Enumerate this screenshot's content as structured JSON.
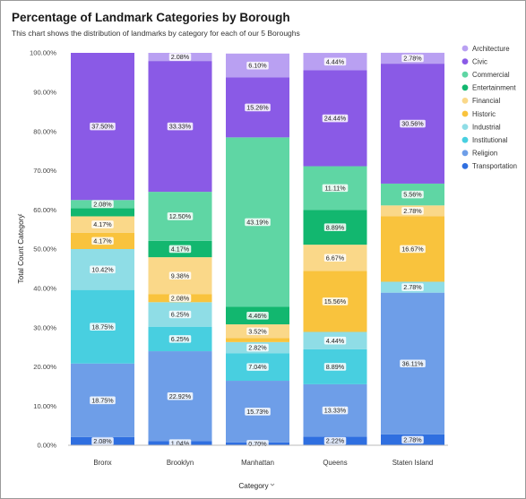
{
  "chart_data": {
    "type": "bar",
    "stacked": true,
    "title": "Percentage of Landmark Categories by Borough",
    "subtitle": "This chart shows the distribution of landmarks by category for each of our 5 Boroughs",
    "xlabel": "Category",
    "ylabel": "Total Count Category",
    "ylim": [
      0,
      100
    ],
    "yticks": [
      "0.00%",
      "10.00%",
      "20.00%",
      "30.00%",
      "40.00%",
      "50.00%",
      "60.00%",
      "70.00%",
      "80.00%",
      "90.00%",
      "100.00%"
    ],
    "categories": [
      "Bronx",
      "Brooklyn",
      "Manhattan",
      "Queens",
      "Staten Island"
    ],
    "legend_position": "right",
    "grid": false,
    "series": [
      {
        "name": "Transportation",
        "color": "#2f6fe0",
        "values": [
          2.08,
          1.04,
          0.7,
          2.22,
          2.78
        ],
        "labels": [
          "2.08%",
          "1.04%",
          "0.70%",
          "2.22%",
          "2.78%"
        ]
      },
      {
        "name": "Religion",
        "color": "#6e9ee8",
        "values": [
          18.75,
          22.92,
          15.73,
          13.33,
          36.11
        ],
        "labels": [
          "18.75%",
          "22.92%",
          "15.73%",
          "13.33%",
          "36.11%"
        ]
      },
      {
        "name": "Institutional",
        "color": "#48cfe0",
        "values": [
          18.75,
          6.25,
          7.04,
          8.89,
          0
        ],
        "labels": [
          "18.75%",
          "6.25%",
          "7.04%",
          "8.89%",
          ""
        ]
      },
      {
        "name": "Industrial",
        "color": "#8fdde6",
        "values": [
          10.42,
          6.25,
          2.82,
          4.44,
          2.78
        ],
        "labels": [
          "10.42%",
          "6.25%",
          "2.82%",
          "4.44%",
          "2.78%"
        ]
      },
      {
        "name": "Historic",
        "color": "#f9c33d",
        "values": [
          4.17,
          2.08,
          1.0,
          15.56,
          16.67
        ],
        "labels": [
          "4.17%",
          "2.08%",
          "",
          "15.56%",
          "16.67%"
        ]
      },
      {
        "name": "Financial",
        "color": "#fad889",
        "values": [
          4.17,
          9.38,
          3.52,
          6.67,
          2.78
        ],
        "labels": [
          "4.17%",
          "9.38%",
          "3.52%",
          "6.67%",
          "2.78%"
        ]
      },
      {
        "name": "Entertainment",
        "color": "#12b76f",
        "values": [
          2.08,
          4.17,
          4.46,
          8.89,
          0
        ],
        "labels": [
          "",
          "4.17%",
          "4.46%",
          "8.89%",
          ""
        ]
      },
      {
        "name": "Commercial",
        "color": "#5fd6a4",
        "values": [
          2.08,
          12.5,
          43.19,
          11.11,
          5.56
        ],
        "labels": [
          "2.08%",
          "12.50%",
          "43.19%",
          "11.11%",
          "5.56%"
        ]
      },
      {
        "name": "Civic",
        "color": "#8a5ae6",
        "values": [
          37.5,
          33.33,
          15.26,
          24.44,
          30.56
        ],
        "labels": [
          "37.50%",
          "33.33%",
          "15.26%",
          "24.44%",
          "30.56%"
        ]
      },
      {
        "name": "Architecture",
        "color": "#b9a0f2",
        "values": [
          0,
          2.08,
          6.1,
          4.44,
          2.78
        ],
        "labels": [
          "",
          "2.08%",
          "6.10%",
          "4.44%",
          "2.78%"
        ]
      }
    ],
    "legend_order": [
      "Architecture",
      "Civic",
      "Commercial",
      "Entertainment",
      "Financial",
      "Historic",
      "Industrial",
      "Institutional",
      "Religion",
      "Transportation"
    ]
  }
}
